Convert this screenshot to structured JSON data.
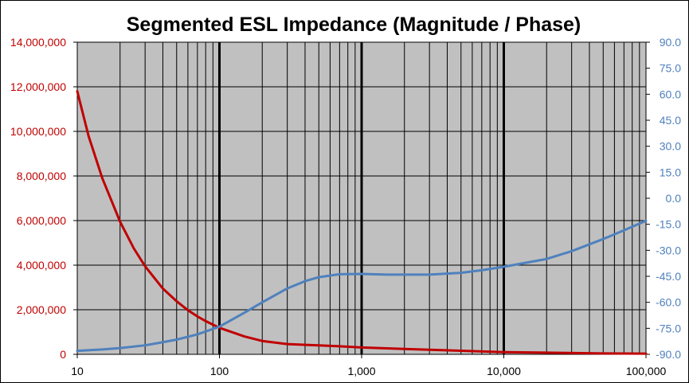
{
  "chart_data": {
    "type": "line",
    "title": "Segmented ESL Impedance (Magnitude / Phase)",
    "x_scale": "log",
    "xlim": [
      10,
      100000
    ],
    "x_tick_labels": [
      "10",
      "100",
      "1,000",
      "10,000",
      "100,000"
    ],
    "x_tick_values": [
      10,
      100,
      1000,
      10000,
      100000
    ],
    "y_left": {
      "lim": [
        0,
        14000000
      ],
      "tick_values": [
        0,
        2000000,
        4000000,
        6000000,
        8000000,
        10000000,
        12000000,
        14000000
      ],
      "tick_labels": [
        "0",
        "2,000,000",
        "4,000,000",
        "6,000,000",
        "8,000,000",
        "10,000,000",
        "12,000,000",
        "14,000,000"
      ],
      "color": "#c00000"
    },
    "y_right": {
      "lim": [
        -90,
        90
      ],
      "tick_values": [
        90,
        75,
        60,
        45,
        30,
        15,
        0,
        -15,
        -30,
        -45,
        -60,
        -75,
        -90
      ],
      "tick_labels": [
        "90.0",
        "75.0",
        "60.0",
        "45.0",
        "30.0",
        "15.0",
        "0.0",
        "-15.0",
        "-30.0",
        "-45.0",
        "-60.0",
        "-75.0",
        "-90.0"
      ],
      "color": "#4f81bd"
    },
    "grid": true,
    "plot_background": "#c0c0c0",
    "series": [
      {
        "axis": "left",
        "color": "#c00000",
        "points": [
          [
            10,
            11800000
          ],
          [
            12,
            9800000
          ],
          [
            15,
            7900000
          ],
          [
            20,
            5950000
          ],
          [
            25,
            4750000
          ],
          [
            30,
            3950000
          ],
          [
            40,
            2950000
          ],
          [
            50,
            2380000
          ],
          [
            60,
            1980000
          ],
          [
            70,
            1700000
          ],
          [
            80,
            1490000
          ],
          [
            100,
            1190000
          ],
          [
            150,
            800000
          ],
          [
            200,
            600000
          ],
          [
            300,
            460000
          ],
          [
            500,
            400000
          ],
          [
            700,
            360000
          ],
          [
            1000,
            310000
          ],
          [
            2000,
            240000
          ],
          [
            5000,
            160000
          ],
          [
            10000,
            100000
          ],
          [
            20000,
            75000
          ],
          [
            50000,
            40000
          ],
          [
            100000,
            30000
          ]
        ]
      },
      {
        "axis": "right",
        "color": "#4f81bd",
        "points": [
          [
            10,
            -88
          ],
          [
            15,
            -87.2
          ],
          [
            20,
            -86.4
          ],
          [
            30,
            -84.8
          ],
          [
            40,
            -83
          ],
          [
            50,
            -81.5
          ],
          [
            70,
            -78.5
          ],
          [
            100,
            -74
          ],
          [
            150,
            -66
          ],
          [
            200,
            -60
          ],
          [
            300,
            -52
          ],
          [
            400,
            -47.8
          ],
          [
            500,
            -45.5
          ],
          [
            700,
            -43.8
          ],
          [
            1000,
            -43.6
          ],
          [
            1500,
            -44
          ],
          [
            2000,
            -44
          ],
          [
            3000,
            -44
          ],
          [
            5000,
            -43
          ],
          [
            7000,
            -41.5
          ],
          [
            10000,
            -39.5
          ],
          [
            20000,
            -35
          ],
          [
            30000,
            -30.5
          ],
          [
            50000,
            -23.5
          ],
          [
            70000,
            -18.5
          ],
          [
            100000,
            -13
          ]
        ]
      }
    ]
  }
}
